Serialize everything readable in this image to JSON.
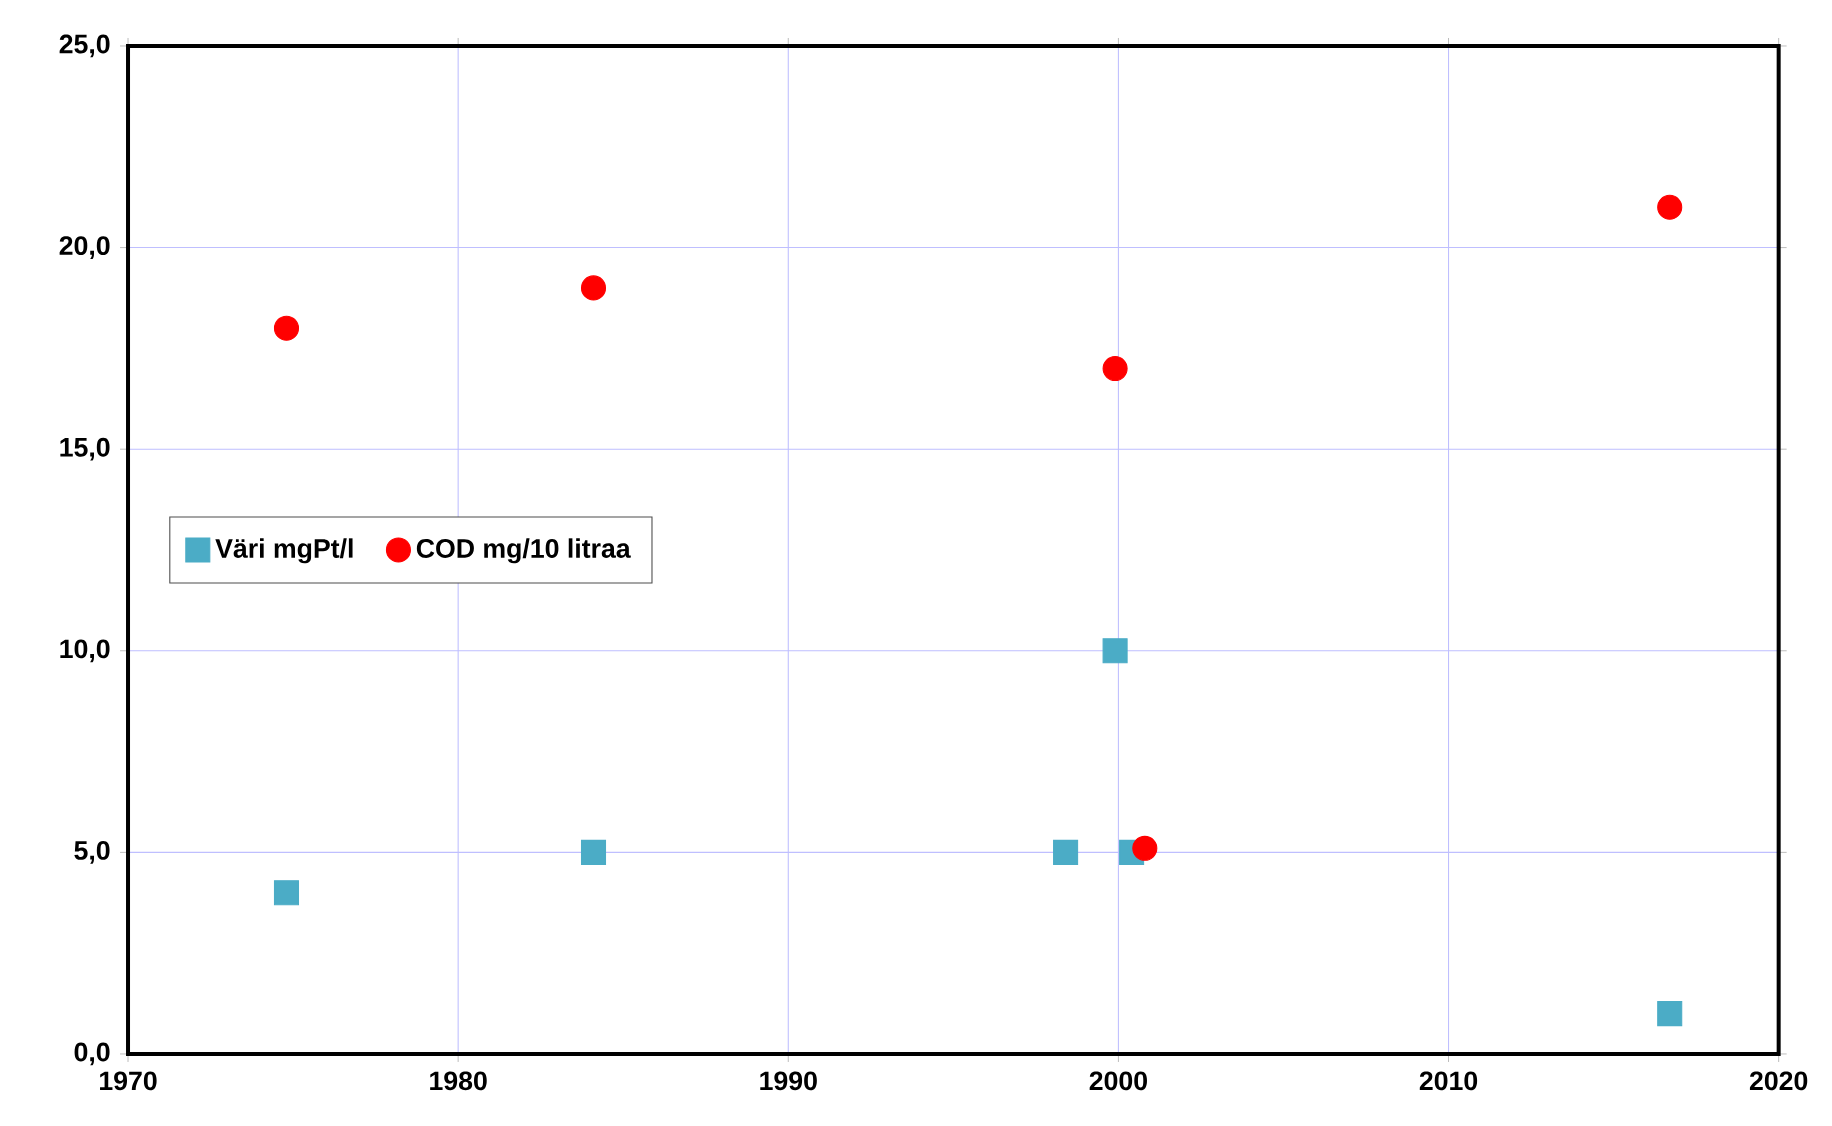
{
  "chart_data": {
    "type": "scatter",
    "xlim": [
      1970,
      2020
    ],
    "xticks": [
      1970,
      1980,
      1990,
      2000,
      2010,
      2020
    ],
    "ylim": [
      0,
      25
    ],
    "yticks": [
      {
        "value": 0,
        "label": "0,0"
      },
      {
        "value": 5,
        "label": "5,0"
      },
      {
        "value": 10,
        "label": "10,0"
      },
      {
        "value": 15,
        "label": "15,0"
      },
      {
        "value": 20,
        "label": "20,0"
      },
      {
        "value": 25,
        "label": "25,0"
      }
    ],
    "grid": true,
    "legend": "left",
    "series": [
      {
        "name": "Väri mgPt/l",
        "color": "#4bacc6",
        "marker": "square",
        "x": [
          1974.8,
          1984.1,
          1998.4,
          1999.9,
          2000.4,
          2000.8,
          2016.7
        ],
        "values": [
          4,
          5,
          5,
          10,
          5,
          null,
          1
        ]
      },
      {
        "name": "COD mg/10 litraa",
        "color": "#ff0000",
        "marker": "circle",
        "x": [
          1974.8,
          1984.1,
          1999.9,
          2000.8,
          2016.7
        ],
        "values": [
          18,
          19,
          17,
          5.1,
          21
        ]
      }
    ]
  }
}
